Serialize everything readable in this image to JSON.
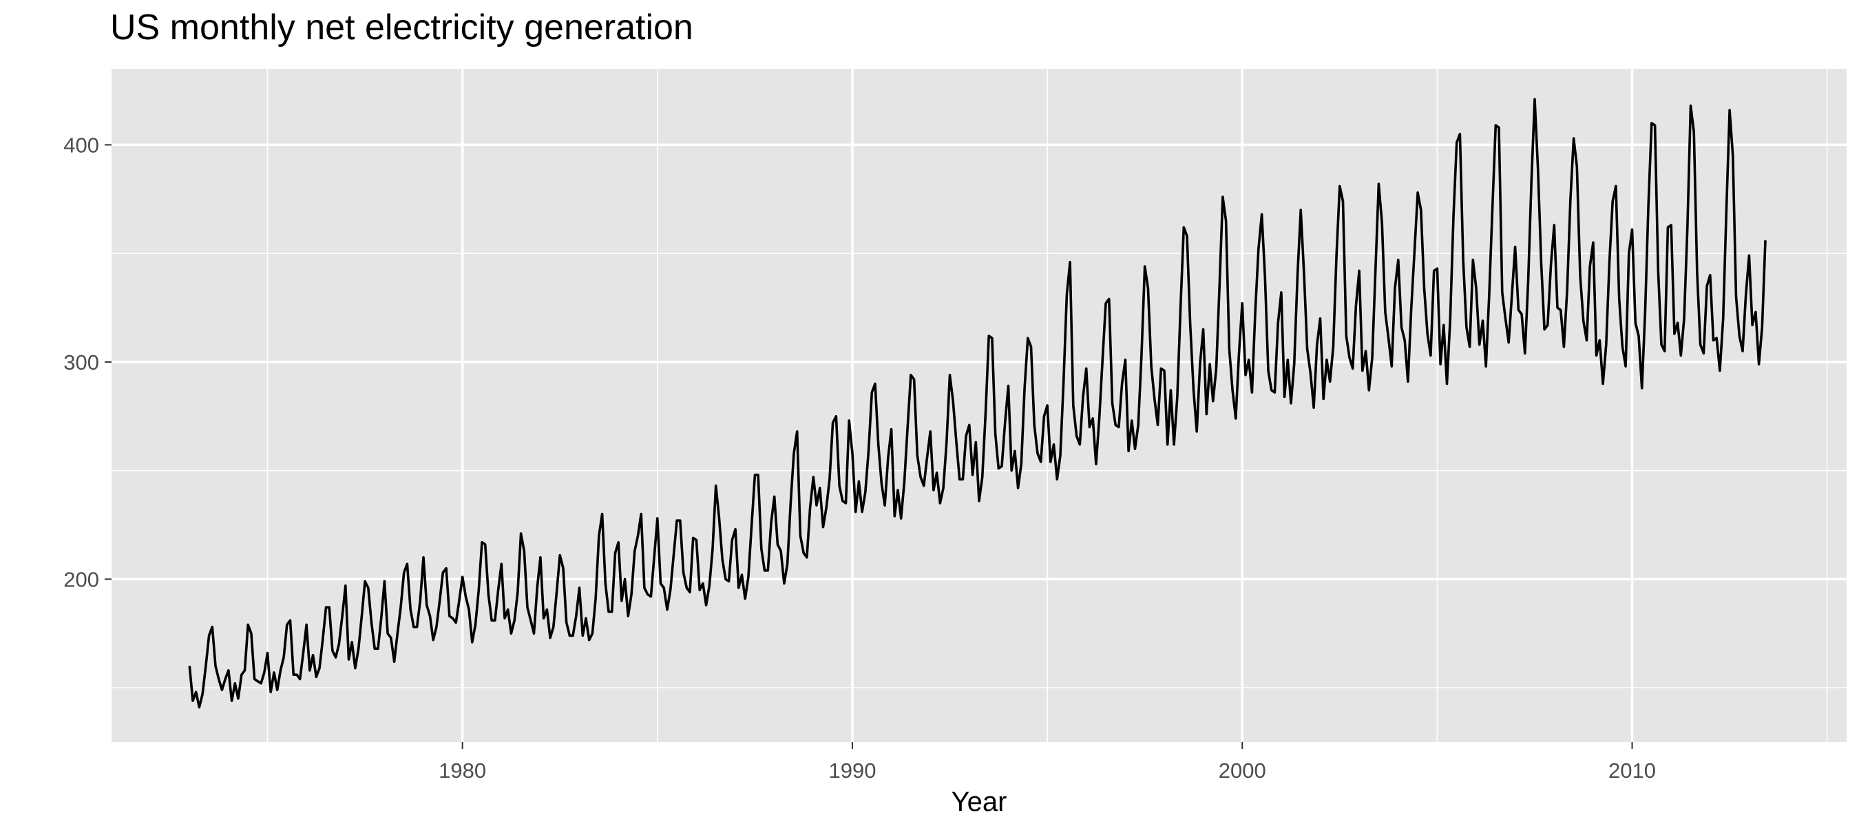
{
  "title": "US monthly net electricity generation",
  "colors": {
    "panel_background": "#e5e5e5",
    "grid": "#ffffff",
    "line": "#000000",
    "tick_text": "#4d4d4d",
    "axis_title": "#000000"
  },
  "chart_data": {
    "type": "line",
    "title": "US monthly net electricity generation",
    "xlabel": "Year",
    "ylabel": "",
    "x_start": 1973.0,
    "x_step": 0.083333,
    "xlim": [
      1971.0,
      2015.5
    ],
    "ylim": [
      125,
      435
    ],
    "x_major_ticks": [
      1980,
      1990,
      2000,
      2010
    ],
    "x_minor_ticks": [
      1975,
      1985,
      1995,
      2005,
      2015
    ],
    "y_major_ticks": [
      200,
      300,
      400
    ],
    "y_minor_ticks": [
      150,
      250,
      350
    ],
    "x_tick_labels": [
      "1980",
      "1990",
      "2000",
      "2010"
    ],
    "y_tick_labels": [
      "200",
      "300",
      "400"
    ],
    "grid": true,
    "legend": "none",
    "series": [
      {
        "values": [
          160,
          144,
          148,
          141,
          147,
          160,
          174,
          178,
          160,
          154,
          149,
          154,
          158,
          144,
          152,
          145,
          156,
          158,
          179,
          175,
          154,
          153,
          152,
          157,
          166,
          148,
          157,
          149,
          158,
          164,
          179,
          181,
          156,
          156,
          154,
          166,
          179,
          158,
          165,
          155,
          159,
          172,
          187,
          187,
          167,
          164,
          170,
          183,
          197,
          163,
          171,
          159,
          168,
          183,
          199,
          196,
          180,
          168,
          168,
          182,
          199,
          175,
          173,
          162,
          175,
          187,
          203,
          207,
          186,
          178,
          178,
          190,
          210,
          188,
          183,
          172,
          178,
          190,
          203,
          205,
          183,
          182,
          180,
          190,
          201,
          192,
          186,
          171,
          179,
          195,
          217,
          216,
          193,
          181,
          181,
          195,
          207,
          182,
          186,
          175,
          181,
          194,
          221,
          213,
          187,
          181,
          175,
          196,
          210,
          182,
          186,
          173,
          178,
          194,
          211,
          205,
          180,
          174,
          174,
          183,
          196,
          174,
          182,
          172,
          175,
          191,
          220,
          230,
          198,
          185,
          185,
          212,
          217,
          190,
          200,
          183,
          193,
          213,
          220,
          230,
          196,
          193,
          192,
          210,
          228,
          198,
          196,
          186,
          195,
          211,
          227,
          227,
          203,
          196,
          194,
          219,
          218,
          195,
          198,
          188,
          197,
          214,
          243,
          228,
          209,
          200,
          199,
          218,
          223,
          196,
          202,
          191,
          201,
          225,
          248,
          248,
          214,
          204,
          204,
          226,
          238,
          216,
          213,
          198,
          207,
          235,
          258,
          268,
          220,
          212,
          210,
          233,
          247,
          234,
          242,
          224,
          233,
          246,
          272,
          275,
          243,
          236,
          235,
          273,
          258,
          231,
          245,
          231,
          240,
          259,
          286,
          290,
          262,
          244,
          234,
          256,
          269,
          229,
          241,
          228,
          245,
          270,
          294,
          292,
          257,
          247,
          243,
          256,
          268,
          241,
          249,
          235,
          242,
          263,
          294,
          282,
          263,
          246,
          246,
          266,
          271,
          248,
          263,
          236,
          247,
          276,
          312,
          311,
          267,
          251,
          252,
          272,
          289,
          250,
          259,
          242,
          253,
          288,
          311,
          307,
          271,
          258,
          254,
          275,
          280,
          254,
          262,
          246,
          257,
          291,
          331,
          346,
          280,
          266,
          262,
          284,
          297,
          270,
          274,
          253,
          274,
          301,
          327,
          329,
          281,
          271,
          270,
          290,
          301,
          259,
          273,
          260,
          271,
          303,
          344,
          334,
          298,
          283,
          271,
          297,
          296,
          262,
          287,
          262,
          284,
          325,
          362,
          358,
          317,
          287,
          268,
          299,
          315,
          276,
          299,
          282,
          297,
          335,
          376,
          365,
          306,
          287,
          274,
          304,
          327,
          294,
          301,
          286,
          323,
          352,
          368,
          339,
          296,
          287,
          286,
          318,
          332,
          284,
          301,
          281,
          299,
          340,
          370,
          341,
          306,
          295,
          279,
          308,
          320,
          283,
          301,
          291,
          307,
          349,
          381,
          374,
          312,
          302,
          297,
          326,
          342,
          296,
          305,
          287,
          302,
          342,
          382,
          364,
          323,
          311,
          298,
          334,
          347,
          316,
          310,
          291,
          324,
          351,
          378,
          370,
          334,
          313,
          303,
          342,
          343,
          299,
          317,
          290,
          320,
          367,
          401,
          405,
          347,
          316,
          307,
          347,
          334,
          308,
          319,
          298,
          331,
          371,
          409,
          408,
          332,
          320,
          309,
          331,
          353,
          324,
          322,
          304,
          337,
          383,
          421,
          389,
          346,
          315,
          317,
          345,
          363,
          325,
          324,
          307,
          333,
          375,
          403,
          390,
          340,
          319,
          310,
          344,
          355,
          303,
          310,
          290,
          308,
          346,
          374,
          381,
          329,
          307,
          298,
          350,
          361,
          318,
          312,
          288,
          323,
          372,
          410,
          409,
          342,
          308,
          305,
          362,
          363,
          313,
          318,
          303,
          320,
          362,
          418,
          406,
          341,
          308,
          304,
          335,
          340,
          310,
          311,
          296,
          320,
          370,
          416,
          395,
          330,
          312,
          305,
          331,
          349,
          317,
          323,
          299,
          316,
          356
        ]
      }
    ]
  }
}
